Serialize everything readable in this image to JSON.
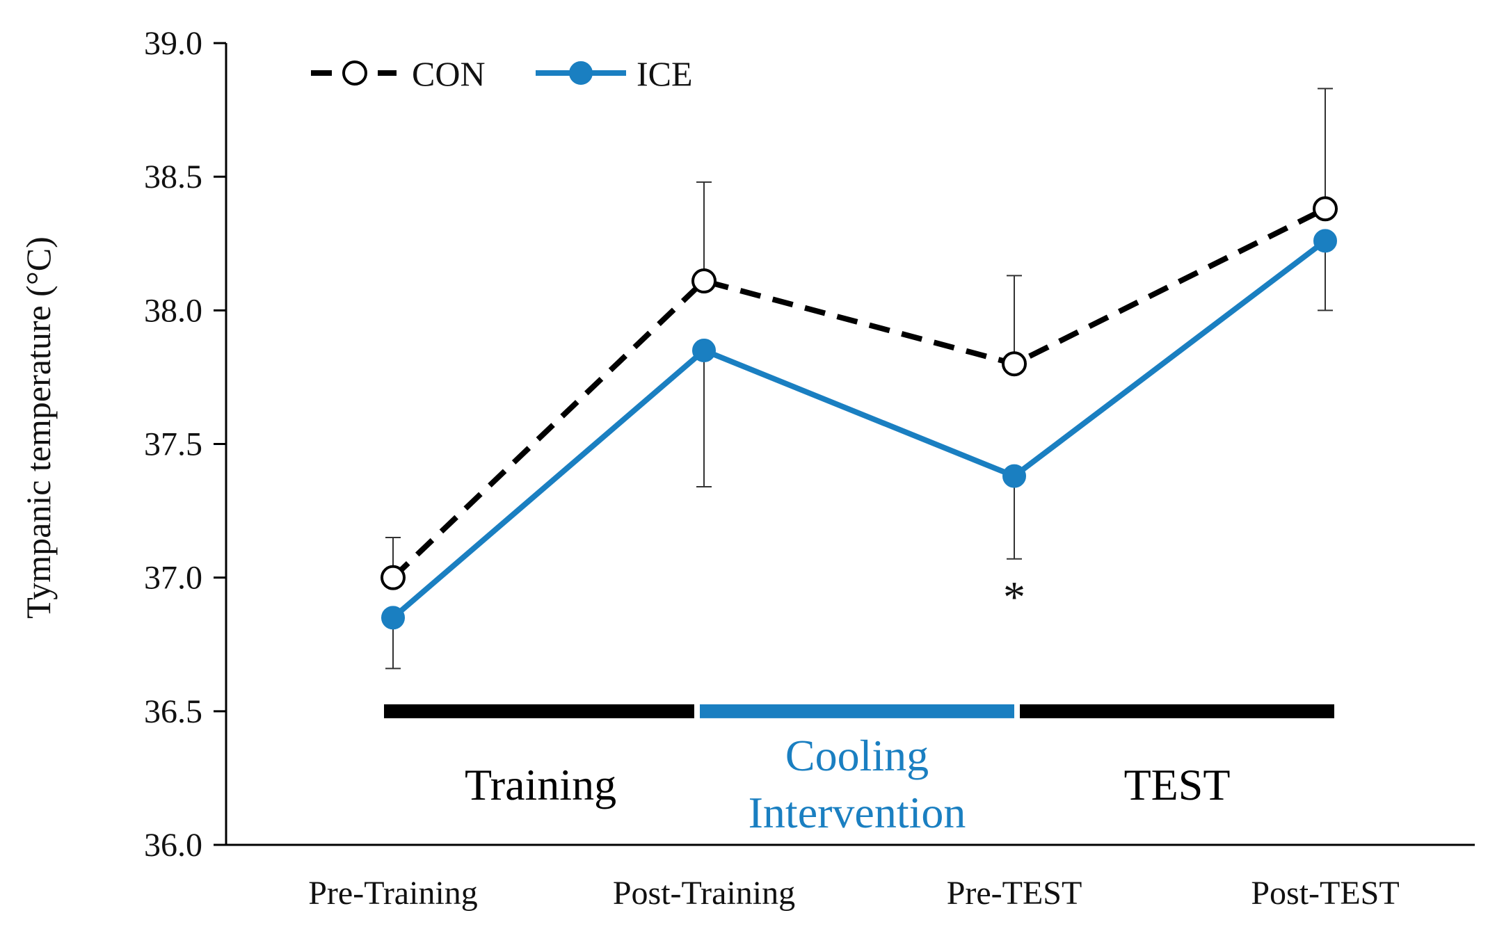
{
  "chart_data": {
    "type": "line",
    "title": "",
    "xlabel": "",
    "ylabel": "Tympanic temperature (°C)",
    "ylim": [
      36.0,
      39.0
    ],
    "yticks": [
      "36.0",
      "36.5",
      "37.0",
      "37.5",
      "38.0",
      "38.5",
      "39.0"
    ],
    "categories": [
      "Pre-Training",
      "Post-Training",
      "Pre-TEST",
      "Post-TEST"
    ],
    "series": [
      {
        "name": "CON",
        "values": [
          37.0,
          38.11,
          37.8,
          38.38
        ],
        "error_upper": [
          0.15,
          0.37,
          0.33,
          0.45
        ],
        "color": "#000000",
        "line_style": "dashed",
        "marker": "open-circle"
      },
      {
        "name": "ICE",
        "values": [
          36.85,
          37.85,
          37.38,
          38.26
        ],
        "error_lower": [
          0.19,
          0.51,
          0.31,
          0.26
        ],
        "color": "#1a7fc1",
        "line_style": "solid",
        "marker": "filled-circle"
      }
    ],
    "phases": [
      {
        "label_lines": [
          "Training"
        ],
        "from": "Pre-Training",
        "to": "Post-Training",
        "color": "#000000"
      },
      {
        "label_lines": [
          "Cooling",
          "Intervention"
        ],
        "from": "Post-Training",
        "to": "Pre-TEST",
        "color": "#1a7fc1"
      },
      {
        "label_lines": [
          "TEST"
        ],
        "from": "Pre-TEST",
        "to": "Post-TEST",
        "color": "#000000"
      }
    ],
    "phase_bar_level": 36.5,
    "annotations": [
      {
        "text": "*",
        "category": "Pre-TEST",
        "y": 36.97
      }
    ],
    "legend": {
      "position": "top-left",
      "entries": [
        "CON",
        "ICE"
      ]
    },
    "grid": false
  }
}
